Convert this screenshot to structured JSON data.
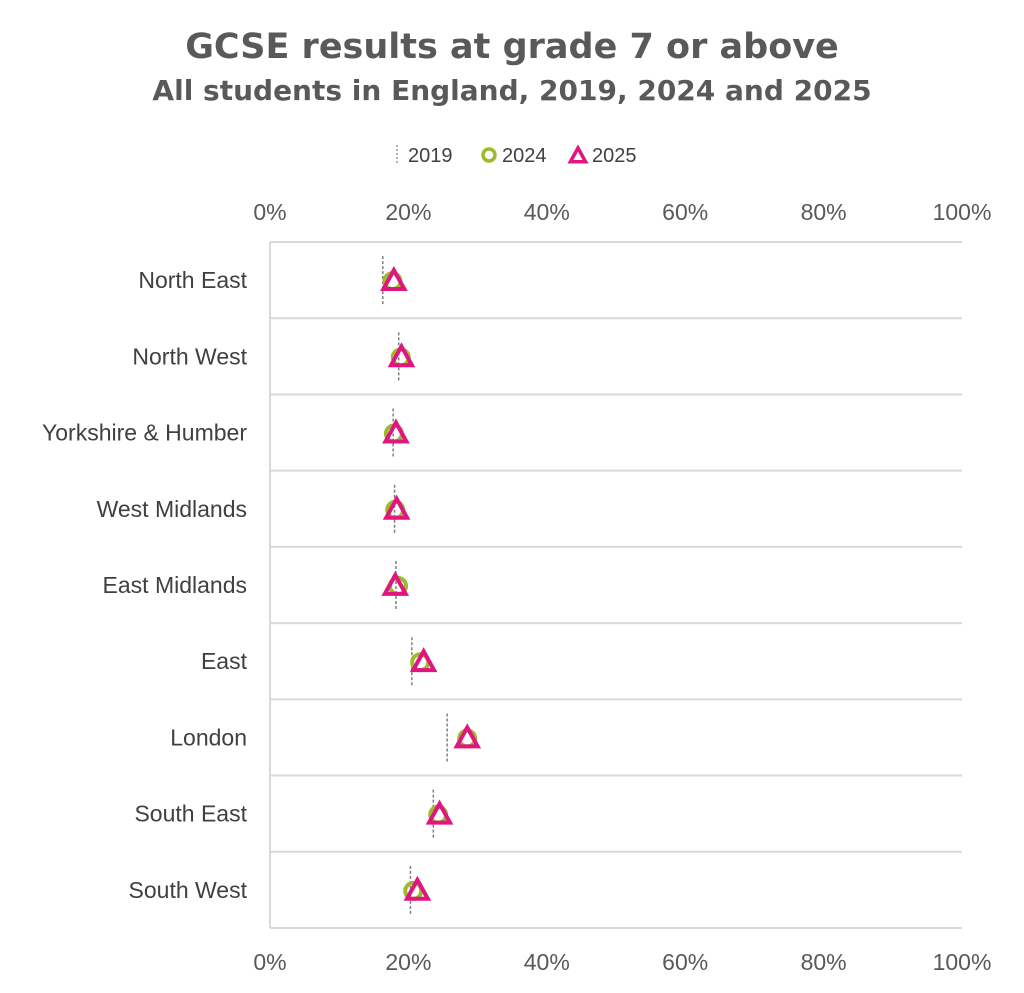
{
  "chart_data": {
    "type": "scatter",
    "title": "GCSE results at grade 7 or above",
    "subtitle": "All students in England, 2019, 2024 and 2025",
    "xlim": [
      0,
      100
    ],
    "x_ticks": [
      "0%",
      "20%",
      "40%",
      "60%",
      "80%",
      "100%"
    ],
    "x_tick_values": [
      0,
      20,
      40,
      60,
      80,
      100
    ],
    "categories": [
      "North East",
      "North West",
      "Yorkshire & Humber",
      "West Midlands",
      "East Midlands",
      "East",
      "London",
      "South East",
      "South West"
    ],
    "series": [
      {
        "name": "2019",
        "marker": "dash",
        "color": "#7f7f7f",
        "values": [
          16.3,
          18.6,
          17.8,
          18.0,
          18.2,
          20.5,
          25.6,
          23.6,
          20.3
        ]
      },
      {
        "name": "2024",
        "marker": "circle",
        "color": "#9bbb2c",
        "values": [
          17.7,
          18.9,
          17.9,
          18.1,
          18.5,
          21.7,
          28.5,
          24.3,
          20.7
        ]
      },
      {
        "name": "2025",
        "marker": "triangle",
        "color": "#e0157f",
        "values": [
          17.9,
          19.0,
          18.2,
          18.3,
          18.1,
          22.2,
          28.5,
          24.5,
          21.3
        ]
      }
    ],
    "legend_position": "top",
    "grid": true
  }
}
